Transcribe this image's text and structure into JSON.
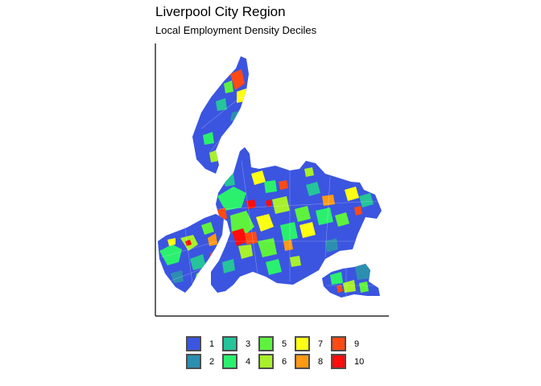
{
  "title": "Liverpool City Region",
  "subtitle": "Local Employment Density Deciles",
  "legend": {
    "items": [
      {
        "label": "1",
        "color": "#3b55e0"
      },
      {
        "label": "2",
        "color": "#2c8fb0"
      },
      {
        "label": "3",
        "color": "#25c49a"
      },
      {
        "label": "4",
        "color": "#2bf06e"
      },
      {
        "label": "5",
        "color": "#5ef23e"
      },
      {
        "label": "6",
        "color": "#a8f02c"
      },
      {
        "label": "7",
        "color": "#ffff14"
      },
      {
        "label": "8",
        "color": "#ff9a12"
      },
      {
        "label": "9",
        "color": "#ff4a14"
      },
      {
        "label": "10",
        "color": "#ff0c0c"
      }
    ]
  }
}
